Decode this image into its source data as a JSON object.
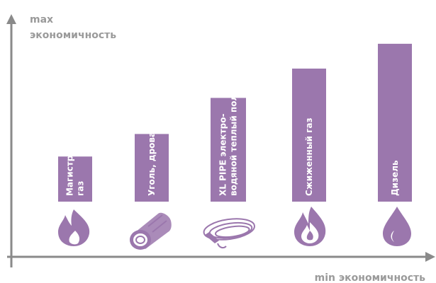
{
  "chart_data": {
    "type": "bar",
    "title": "",
    "y_axis_top_label": [
      "max",
      "экономичность"
    ],
    "x_axis_label": "min экономичность",
    "categories": [
      [
        "Магистр.",
        "газ"
      ],
      [
        "Уголь, дрова"
      ],
      [
        "XL PIPE электро-",
        "водяной теплый пол"
      ],
      [
        "Сжиженный газ"
      ],
      [
        "Дизель"
      ]
    ],
    "values": [
      1.0,
      1.5,
      2.3,
      2.95,
      3.5
    ],
    "value_scale": "relative, read from bar heights (no numeric ticks printed)",
    "ylim": [
      0,
      4
    ],
    "grid": false,
    "icons": [
      "flame-icon",
      "log-icon",
      "pipe-coil-icon",
      "flame-outline-icon",
      "drop-icon"
    ],
    "colors": {
      "bar": "#9b77ad",
      "axis": "#8a8a8a",
      "axis_text": "#9a9a9a",
      "bar_text": "#ffffff"
    }
  }
}
